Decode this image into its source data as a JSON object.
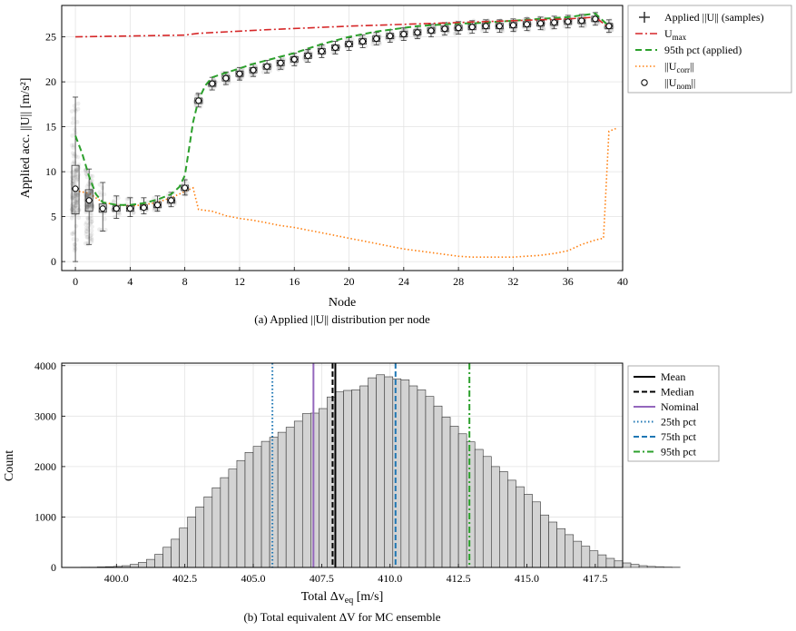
{
  "chart_data": [
    {
      "type": "box",
      "caption": "(a) Applied ||U|| distribution per node",
      "xlabel": "Node",
      "ylabel": "Applied acc. ||U|| [m/s²]",
      "xlim": [
        -1,
        40
      ],
      "ylim": [
        -1,
        28.5
      ],
      "xticks": [
        0,
        4,
        8,
        12,
        16,
        20,
        24,
        28,
        32,
        36,
        40
      ],
      "yticks": [
        0,
        5,
        10,
        15,
        20,
        25
      ],
      "grid": true,
      "legend_position": "outside-right",
      "legend": [
        {
          "key": "samples",
          "label": "Applied ||U|| (samples)"
        },
        {
          "key": "umax",
          "label": "U",
          "sub": "max"
        },
        {
          "key": "p95",
          "label": "95th pct (applied)"
        },
        {
          "key": "ucorr",
          "label": "||U",
          "sub": "corr",
          "tail": "||"
        },
        {
          "key": "unom",
          "label": "||U",
          "sub": "nom",
          "tail": "||"
        }
      ],
      "colors": {
        "umax": "#d62728",
        "p95": "#2ca02c",
        "ucorr": "#ff7f0e",
        "samples": "#333333"
      },
      "nodes": [
        0,
        1,
        2,
        3,
        4,
        5,
        6,
        7,
        8,
        9,
        10,
        11,
        12,
        13,
        14,
        15,
        16,
        17,
        18,
        19,
        20,
        21,
        22,
        23,
        24,
        25,
        26,
        27,
        28,
        29,
        30,
        31,
        32,
        33,
        34,
        35,
        36,
        37,
        38,
        39
      ],
      "series": [
        {
          "name": "U_max",
          "kind": "line",
          "x": [
            0,
            8,
            9,
            14,
            20,
            26,
            32,
            36,
            38,
            39
          ],
          "y": [
            25.0,
            25.2,
            25.4,
            25.8,
            26.2,
            26.5,
            26.8,
            27.0,
            27.2,
            26.0
          ]
        },
        {
          "name": "95th pct (applied)",
          "kind": "line",
          "x": [
            0,
            0.5,
            1,
            1.5,
            2,
            3,
            4,
            5,
            6,
            7,
            7.6,
            8,
            8.3,
            8.6,
            9,
            9.5,
            10,
            11,
            12,
            13,
            14,
            15,
            16,
            17,
            18,
            19,
            20,
            21,
            22,
            23,
            24,
            25,
            26,
            27,
            28,
            29,
            30,
            31,
            32,
            33,
            34,
            35,
            36,
            37,
            38,
            39
          ],
          "y": [
            14.0,
            12.0,
            9.5,
            7.5,
            6.6,
            6.3,
            6.3,
            6.5,
            6.9,
            7.5,
            8.3,
            9.6,
            12.5,
            15.5,
            18.0,
            19.6,
            20.5,
            21.0,
            21.5,
            22.0,
            22.4,
            22.8,
            23.2,
            23.7,
            24.2,
            24.6,
            25.0,
            25.3,
            25.6,
            25.8,
            26.0,
            26.2,
            26.3,
            26.4,
            26.5,
            26.5,
            26.6,
            26.7,
            26.8,
            26.9,
            27.0,
            27.1,
            27.2,
            27.4,
            27.6,
            26.2
          ]
        },
        {
          "name": "||U_corr||",
          "kind": "line",
          "x": [
            0,
            1,
            2,
            3,
            4,
            5,
            6,
            7,
            8,
            8.6,
            9,
            10,
            11,
            12,
            13,
            14,
            15,
            16,
            17,
            18,
            19,
            20,
            21,
            22,
            23,
            24,
            25,
            26,
            27,
            28,
            29,
            30,
            31,
            32,
            33,
            34,
            35,
            36,
            37,
            38,
            38.6,
            39,
            39.5
          ],
          "y": [
            7.9,
            7.6,
            6.6,
            6.3,
            6.2,
            6.3,
            6.6,
            7.1,
            7.8,
            8.2,
            5.8,
            5.6,
            5.1,
            4.8,
            4.6,
            4.3,
            4.0,
            3.8,
            3.5,
            3.2,
            2.9,
            2.6,
            2.3,
            2.0,
            1.7,
            1.4,
            1.2,
            1.0,
            0.8,
            0.6,
            0.5,
            0.5,
            0.5,
            0.5,
            0.6,
            0.7,
            0.9,
            1.2,
            1.9,
            2.4,
            2.6,
            14.5,
            14.8
          ]
        },
        {
          "name": "||U_nom||",
          "kind": "points",
          "x": [
            0,
            1,
            2,
            3,
            4,
            5,
            6,
            7,
            8,
            9,
            10,
            11,
            12,
            13,
            14,
            15,
            16,
            17,
            18,
            19,
            20,
            21,
            22,
            23,
            24,
            25,
            26,
            27,
            28,
            29,
            30,
            31,
            32,
            33,
            34,
            35,
            36,
            37,
            38,
            39
          ],
          "y": [
            8.1,
            6.8,
            5.9,
            5.9,
            5.9,
            6.0,
            6.3,
            6.8,
            8.2,
            17.9,
            19.8,
            20.4,
            20.9,
            21.3,
            21.7,
            22.1,
            22.5,
            22.9,
            23.4,
            23.8,
            24.2,
            24.5,
            24.8,
            25.1,
            25.3,
            25.5,
            25.7,
            25.9,
            26.0,
            26.1,
            26.2,
            26.2,
            26.3,
            26.4,
            26.5,
            26.6,
            26.7,
            26.8,
            27.0,
            26.2
          ]
        },
        {
          "name": "Applied ||U|| (samples)",
          "kind": "box",
          "x": [
            0,
            1,
            2,
            3,
            4,
            5,
            6,
            7,
            8,
            9,
            10,
            11,
            12,
            13,
            14,
            15,
            16,
            17,
            18,
            19,
            20,
            21,
            22,
            23,
            24,
            25,
            26,
            27,
            28,
            29,
            30,
            31,
            32,
            33,
            34,
            35,
            36,
            37,
            38,
            39
          ],
          "q1": [
            5.3,
            5.6,
            5.5,
            5.6,
            5.6,
            5.8,
            6.0,
            6.5,
            7.9,
            17.6,
            19.5,
            20.1,
            20.6,
            21.0,
            21.4,
            21.8,
            22.2,
            22.6,
            23.1,
            23.5,
            23.9,
            24.2,
            24.5,
            24.8,
            25.0,
            25.2,
            25.4,
            25.6,
            25.7,
            25.8,
            25.9,
            25.9,
            26.0,
            26.1,
            26.2,
            26.3,
            26.4,
            26.5,
            26.7,
            25.9
          ],
          "med": [
            8.1,
            6.8,
            5.9,
            5.9,
            5.9,
            6.0,
            6.3,
            6.8,
            8.2,
            17.9,
            19.8,
            20.4,
            20.9,
            21.3,
            21.7,
            22.1,
            22.5,
            22.9,
            23.4,
            23.8,
            24.2,
            24.5,
            24.8,
            25.1,
            25.3,
            25.5,
            25.7,
            25.9,
            26.0,
            26.1,
            26.2,
            26.2,
            26.3,
            26.4,
            26.5,
            26.6,
            26.7,
            26.8,
            27.0,
            26.2
          ],
          "q3": [
            10.7,
            8.0,
            6.4,
            6.2,
            6.2,
            6.3,
            6.6,
            7.1,
            8.5,
            18.2,
            20.1,
            20.7,
            21.2,
            21.6,
            22.0,
            22.4,
            22.8,
            23.2,
            23.7,
            24.1,
            24.5,
            24.8,
            25.1,
            25.4,
            25.6,
            25.8,
            26.0,
            26.2,
            26.3,
            26.4,
            26.5,
            26.5,
            26.6,
            26.7,
            26.8,
            26.9,
            27.0,
            27.1,
            27.3,
            26.5
          ],
          "lo": [
            0.0,
            1.9,
            3.4,
            4.8,
            5.0,
            5.3,
            5.6,
            6.1,
            7.4,
            17.2,
            19.1,
            19.7,
            20.2,
            20.6,
            21.0,
            21.4,
            21.8,
            22.2,
            22.7,
            23.1,
            23.5,
            23.8,
            24.1,
            24.4,
            24.6,
            24.8,
            25.0,
            25.2,
            25.3,
            25.4,
            25.5,
            25.5,
            25.6,
            25.7,
            25.8,
            25.9,
            26.0,
            26.1,
            26.3,
            25.5
          ],
          "hi": [
            18.3,
            10.3,
            8.8,
            7.3,
            7.1,
            7.1,
            7.3,
            7.7,
            9.1,
            18.7,
            20.5,
            21.1,
            21.6,
            22.0,
            22.4,
            22.8,
            23.2,
            23.6,
            24.1,
            24.5,
            24.9,
            25.2,
            25.5,
            25.8,
            26.0,
            26.2,
            26.4,
            26.6,
            26.7,
            26.8,
            26.9,
            26.9,
            27.0,
            27.1,
            27.2,
            27.3,
            27.4,
            27.5,
            27.7,
            26.9
          ]
        }
      ]
    },
    {
      "type": "bar",
      "subtype": "histogram",
      "caption": "(b) Total equivalent ΔV for MC ensemble",
      "xlabel": "Total Δv",
      "xlabel_sub": "eq",
      "xlabel_unit": " [m/s]",
      "ylabel": "Count",
      "xlim": [
        398.0,
        418.5
      ],
      "ylim": [
        0,
        4050
      ],
      "xticks": [
        400.0,
        402.5,
        405.0,
        407.5,
        410.0,
        412.5,
        415.0,
        417.5
      ],
      "xtick_labels": [
        "400.0",
        "402.5",
        "405.0",
        "407.5",
        "410.0",
        "412.5",
        "415.0",
        "417.5"
      ],
      "yticks": [
        0,
        1000,
        2000,
        3000,
        4000
      ],
      "grid": true,
      "legend_position": "outside-right",
      "bin_start": 398.7,
      "bin_width": 0.3,
      "counts": [
        5,
        5,
        10,
        15,
        20,
        35,
        60,
        100,
        160,
        260,
        400,
        560,
        780,
        1000,
        1200,
        1400,
        1580,
        1780,
        1950,
        2120,
        2280,
        2400,
        2500,
        2580,
        2680,
        2780,
        2900,
        3050,
        3060,
        3150,
        3380,
        3480,
        3510,
        3520,
        3600,
        3760,
        3820,
        3780,
        3740,
        3720,
        3600,
        3520,
        3390,
        3200,
        2980,
        2800,
        2650,
        2490,
        2340,
        2200,
        2000,
        1900,
        1730,
        1600,
        1450,
        1300,
        1040,
        900,
        770,
        650,
        520,
        420,
        330,
        250,
        180,
        130,
        90,
        60,
        35,
        20,
        15,
        8,
        5
      ],
      "bar_color": "#d3d3d3",
      "vlines": [
        {
          "name": "Mean",
          "x": 408.0,
          "color": "#000000",
          "style": "solid"
        },
        {
          "name": "Median",
          "x": 407.9,
          "color": "#000000",
          "style": "dashed"
        },
        {
          "name": "Nominal",
          "x": 407.2,
          "color": "#9467bd",
          "style": "solid"
        },
        {
          "name": "25th pct",
          "x": 405.7,
          "color": "#1f77b4",
          "style": "dotted"
        },
        {
          "name": "75th pct",
          "x": 410.2,
          "color": "#1f77b4",
          "style": "dashed"
        },
        {
          "name": "95th pct",
          "x": 412.9,
          "color": "#2ca02c",
          "style": "dashdot"
        }
      ]
    }
  ]
}
